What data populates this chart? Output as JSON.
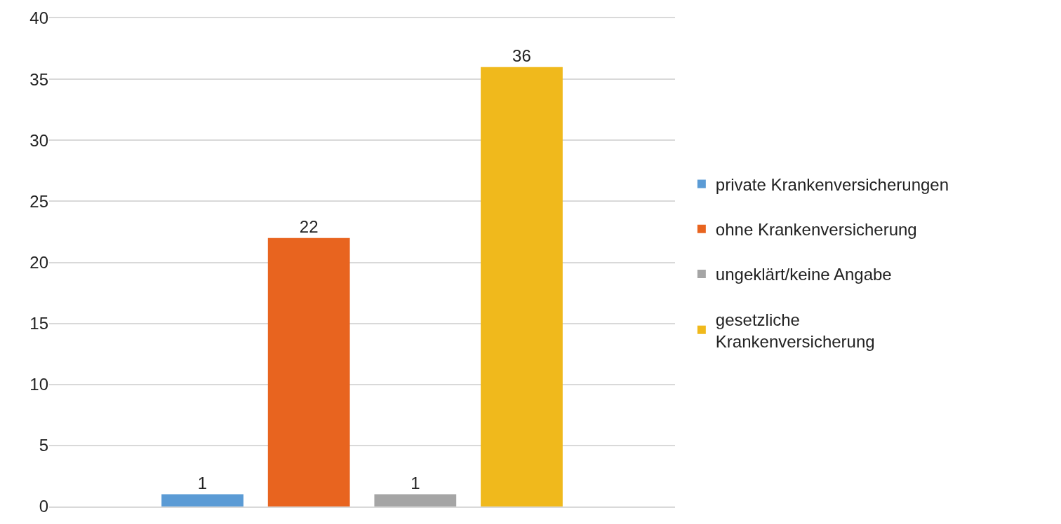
{
  "chart_data": {
    "type": "bar",
    "categories": [
      null
    ],
    "series": [
      {
        "name": "private Krankenversicherungen",
        "color": "#5b9bd5",
        "values": [
          1
        ]
      },
      {
        "name": "ohne Krankenversicherung",
        "color": "#e8641f",
        "values": [
          22
        ]
      },
      {
        "name": "ungeklärt/keine Angabe",
        "color": "#a5a5a5",
        "values": [
          1
        ]
      },
      {
        "name": "gesetzliche Krankenversicherung",
        "color": "#f0b91c",
        "values": [
          36
        ]
      }
    ],
    "ylim": [
      0,
      40
    ],
    "yticks": [
      0,
      5,
      10,
      15,
      20,
      25,
      30,
      35,
      40
    ],
    "grid": "y",
    "legend": "right",
    "data_labels": true
  }
}
